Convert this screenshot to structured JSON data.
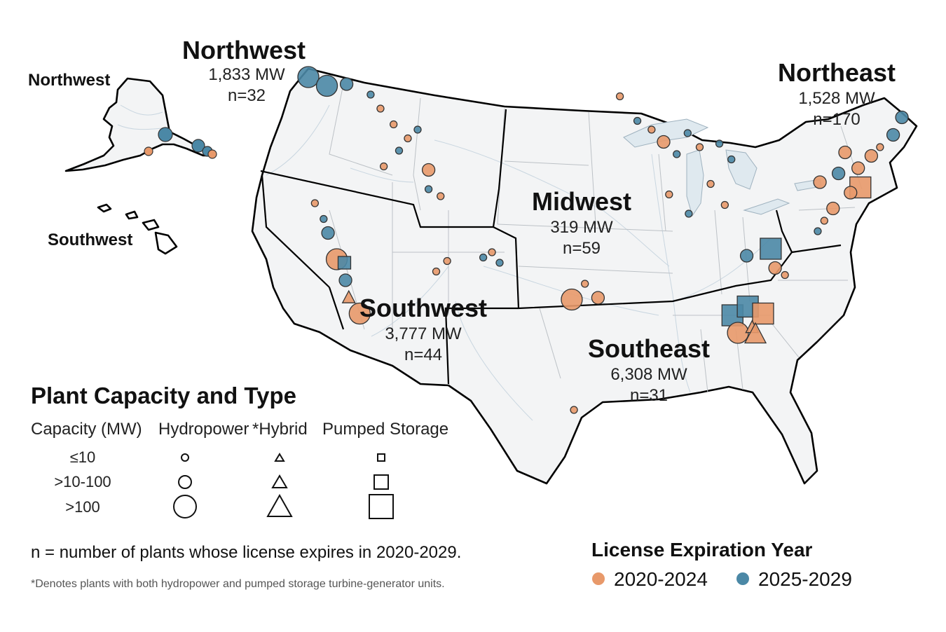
{
  "regions": {
    "northwest": {
      "name": "Northwest",
      "capacity": "1,833 MW",
      "count": "n=32"
    },
    "northeast": {
      "name": "Northeast",
      "capacity": "1,528 MW",
      "count": "n=170"
    },
    "midwest": {
      "name": "Midwest",
      "capacity": "319 MW",
      "count": "n=59"
    },
    "southwest": {
      "name": "Southwest",
      "capacity": "3,777 MW",
      "count": "n=44"
    },
    "southeast": {
      "name": "Southeast",
      "capacity": "6,308 MW",
      "count": "n=31"
    }
  },
  "insets": {
    "alaska_label": "Northwest",
    "hawaii_label": "Southwest"
  },
  "legend": {
    "title": "Plant Capacity and Type",
    "columns": {
      "capacity": "Capacity (MW)",
      "hydropower": "Hydropower",
      "hybrid": "*Hybrid",
      "pumped": "Pumped Storage"
    },
    "rows": [
      "≤10",
      ">10-100",
      ">100"
    ],
    "note": "n = number of plants whose license expires in 2020-2029.",
    "footnote": "*Denotes plants with both hydropower and pumped storage turbine-generator units."
  },
  "expiration_legend": {
    "title": "License Expiration Year",
    "items": [
      {
        "label": "2020-2024",
        "color": "#e8996a"
      },
      {
        "label": "2025-2029",
        "color": "#4b88a6"
      }
    ]
  },
  "colors": {
    "early": "#e8996a",
    "late": "#4b88a6",
    "land": "#f3f4f5",
    "water": "#dfe9ef"
  },
  "plants": [
    {
      "lon": -122.9,
      "lat": 48.9,
      "size": "large",
      "type": "hydro",
      "period": "late"
    },
    {
      "lon": -121.2,
      "lat": 48.4,
      "size": "large",
      "type": "hydro",
      "period": "late"
    },
    {
      "lon": -119.4,
      "lat": 48.5,
      "size": "medium",
      "type": "hydro",
      "period": "late"
    },
    {
      "lon": -117.2,
      "lat": 47.9,
      "size": "small",
      "type": "hydro",
      "period": "late"
    },
    {
      "lon": -116.3,
      "lat": 47.1,
      "size": "small",
      "type": "hydro",
      "period": "early"
    },
    {
      "lon": -115.1,
      "lat": 46.2,
      "size": "small",
      "type": "hydro",
      "period": "early"
    },
    {
      "lon": -113.8,
      "lat": 45.4,
      "size": "small",
      "type": "hydro",
      "period": "early"
    },
    {
      "lon": -112.9,
      "lat": 45.9,
      "size": "small",
      "type": "hydro",
      "period": "late"
    },
    {
      "lon": -114.6,
      "lat": 44.7,
      "size": "small",
      "type": "hydro",
      "period": "late"
    },
    {
      "lon": -116.0,
      "lat": 43.8,
      "size": "small",
      "type": "hydro",
      "period": "early"
    },
    {
      "lon": -111.9,
      "lat": 43.6,
      "size": "medium",
      "type": "hydro",
      "period": "early"
    },
    {
      "lon": -111.9,
      "lat": 42.5,
      "size": "small",
      "type": "hydro",
      "period": "late"
    },
    {
      "lon": -110.8,
      "lat": 42.1,
      "size": "small",
      "type": "hydro",
      "period": "early"
    },
    {
      "lon": -122.3,
      "lat": 41.7,
      "size": "small",
      "type": "hydro",
      "period": "early"
    },
    {
      "lon": -121.5,
      "lat": 40.8,
      "size": "small",
      "type": "hydro",
      "period": "late"
    },
    {
      "lon": -121.1,
      "lat": 40.0,
      "size": "medium",
      "type": "hydro",
      "period": "late"
    },
    {
      "lon": -120.3,
      "lat": 38.5,
      "size": "large",
      "type": "hydro",
      "period": "early"
    },
    {
      "lon": -119.6,
      "lat": 38.3,
      "size": "medium",
      "type": "pumped",
      "period": "late"
    },
    {
      "lon": -119.5,
      "lat": 37.3,
      "size": "medium",
      "type": "hydro",
      "period": "late"
    },
    {
      "lon": -119.2,
      "lat": 36.3,
      "size": "medium",
      "type": "hybrid",
      "period": "early"
    },
    {
      "lon": -118.2,
      "lat": 35.4,
      "size": "large",
      "type": "hydro",
      "period": "early"
    },
    {
      "lon": -111.2,
      "lat": 37.8,
      "size": "small",
      "type": "hydro",
      "period": "early"
    },
    {
      "lon": -110.2,
      "lat": 38.4,
      "size": "small",
      "type": "hydro",
      "period": "early"
    },
    {
      "lon": -106.9,
      "lat": 38.6,
      "size": "small",
      "type": "hydro",
      "period": "late"
    },
    {
      "lon": -106.1,
      "lat": 38.9,
      "size": "small",
      "type": "hydro",
      "period": "early"
    },
    {
      "lon": -105.4,
      "lat": 38.3,
      "size": "small",
      "type": "hydro",
      "period": "late"
    },
    {
      "lon": -94.4,
      "lat": 47.8,
      "size": "small",
      "type": "hydro",
      "period": "early"
    },
    {
      "lon": -92.8,
      "lat": 46.4,
      "size": "small",
      "type": "hydro",
      "period": "late"
    },
    {
      "lon": -91.5,
      "lat": 45.9,
      "size": "small",
      "type": "hydro",
      "period": "early"
    },
    {
      "lon": -90.4,
      "lat": 45.2,
      "size": "medium",
      "type": "hydro",
      "period": "early"
    },
    {
      "lon": -89.2,
      "lat": 44.5,
      "size": "small",
      "type": "hydro",
      "period": "late"
    },
    {
      "lon": -88.2,
      "lat": 45.7,
      "size": "small",
      "type": "hydro",
      "period": "late"
    },
    {
      "lon": -87.1,
      "lat": 44.9,
      "size": "small",
      "type": "hydro",
      "period": "early"
    },
    {
      "lon": -85.3,
      "lat": 45.1,
      "size": "small",
      "type": "hydro",
      "period": "late"
    },
    {
      "lon": -84.2,
      "lat": 44.2,
      "size": "small",
      "type": "hydro",
      "period": "late"
    },
    {
      "lon": -86.1,
      "lat": 42.8,
      "size": "small",
      "type": "hydro",
      "period": "early"
    },
    {
      "lon": -89.9,
      "lat": 42.2,
      "size": "small",
      "type": "hydro",
      "period": "early"
    },
    {
      "lon": -88.1,
      "lat": 41.1,
      "size": "small",
      "type": "hydro",
      "period": "late"
    },
    {
      "lon": -84.8,
      "lat": 41.6,
      "size": "small",
      "type": "hydro",
      "period": "early"
    },
    {
      "lon": -97.6,
      "lat": 37.1,
      "size": "small",
      "type": "hydro",
      "period": "early"
    },
    {
      "lon": -98.8,
      "lat": 36.2,
      "size": "large",
      "type": "hydro",
      "period": "early"
    },
    {
      "lon": -96.4,
      "lat": 36.3,
      "size": "medium",
      "type": "hydro",
      "period": "early"
    },
    {
      "lon": -98.6,
      "lat": 29.9,
      "size": "small",
      "type": "hydro",
      "period": "early"
    },
    {
      "lon": -82.8,
      "lat": 38.7,
      "size": "medium",
      "type": "hydro",
      "period": "late"
    },
    {
      "lon": -80.6,
      "lat": 39.1,
      "size": "large",
      "type": "pumped",
      "period": "late"
    },
    {
      "lon": -80.2,
      "lat": 38.0,
      "size": "medium",
      "type": "hydro",
      "period": "early"
    },
    {
      "lon": -79.3,
      "lat": 37.6,
      "size": "small",
      "type": "hydro",
      "period": "early"
    },
    {
      "lon": -84.1,
      "lat": 35.3,
      "size": "large",
      "type": "pumped",
      "period": "late"
    },
    {
      "lon": -82.7,
      "lat": 35.8,
      "size": "large",
      "type": "pumped",
      "period": "late"
    },
    {
      "lon": -81.3,
      "lat": 35.4,
      "size": "large",
      "type": "pumped",
      "period": "early"
    },
    {
      "lon": -83.6,
      "lat": 34.3,
      "size": "large",
      "type": "hydro",
      "period": "early"
    },
    {
      "lon": -82.3,
      "lat": 34.6,
      "size": "medium",
      "type": "hybrid",
      "period": "early"
    },
    {
      "lon": -82.0,
      "lat": 34.2,
      "size": "large",
      "type": "hybrid",
      "period": "early"
    },
    {
      "lon": -76.1,
      "lat": 42.9,
      "size": "medium",
      "type": "hydro",
      "period": "early"
    },
    {
      "lon": -74.4,
      "lat": 43.4,
      "size": "medium",
      "type": "hydro",
      "period": "late"
    },
    {
      "lon": -73.8,
      "lat": 44.6,
      "size": "medium",
      "type": "hydro",
      "period": "early"
    },
    {
      "lon": -72.6,
      "lat": 43.7,
      "size": "medium",
      "type": "hydro",
      "period": "early"
    },
    {
      "lon": -71.4,
      "lat": 44.4,
      "size": "medium",
      "type": "hydro",
      "period": "early"
    },
    {
      "lon": -70.6,
      "lat": 44.9,
      "size": "small",
      "type": "hydro",
      "period": "early"
    },
    {
      "lon": -69.4,
      "lat": 45.6,
      "size": "medium",
      "type": "hydro",
      "period": "late"
    },
    {
      "lon": -68.6,
      "lat": 46.6,
      "size": "medium",
      "type": "hydro",
      "period": "late"
    },
    {
      "lon": -72.4,
      "lat": 42.6,
      "size": "large",
      "type": "pumped",
      "period": "early"
    },
    {
      "lon": -73.3,
      "lat": 42.3,
      "size": "medium",
      "type": "hydro",
      "period": "early"
    },
    {
      "lon": -74.9,
      "lat": 41.4,
      "size": "medium",
      "type": "hydro",
      "period": "early"
    },
    {
      "lon": -75.7,
      "lat": 40.7,
      "size": "small",
      "type": "hydro",
      "period": "early"
    },
    {
      "lon": -76.3,
      "lat": 40.1,
      "size": "small",
      "type": "hydro",
      "period": "late"
    }
  ],
  "alaska_plants": [
    {
      "x": 236,
      "y": 192,
      "period": "late",
      "r": 10
    },
    {
      "x": 283,
      "y": 208,
      "period": "late",
      "r": 9
    },
    {
      "x": 296,
      "y": 216,
      "period": "late",
      "r": 7
    },
    {
      "x": 303,
      "y": 220,
      "period": "early",
      "r": 6
    },
    {
      "x": 212,
      "y": 216,
      "period": "early",
      "r": 6
    }
  ]
}
